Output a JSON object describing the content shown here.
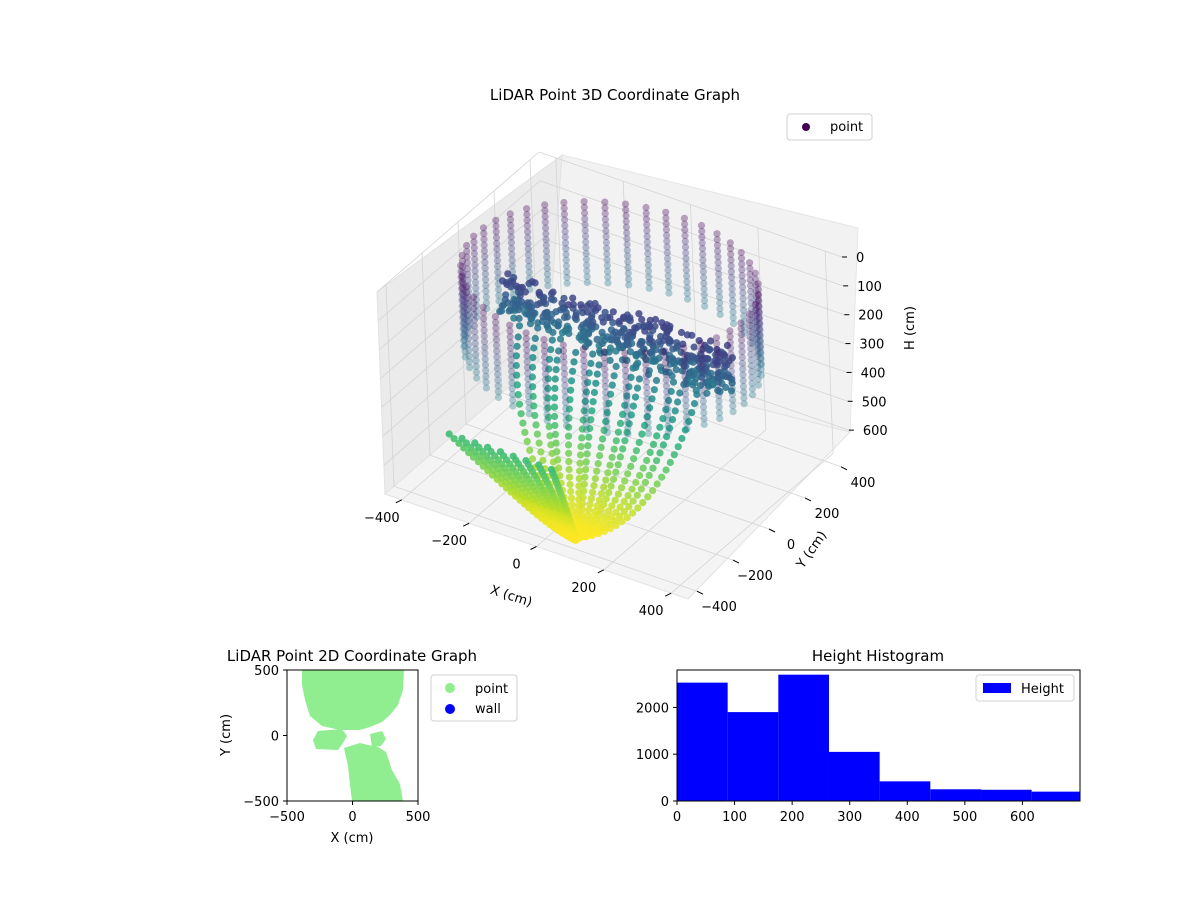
{
  "chart_data": [
    {
      "type": "scatter",
      "projection": "3d",
      "title": "LiDAR Point 3D Coordinate Graph",
      "xlabel": "X (cm)",
      "ylabel": "Y (cm)",
      "zlabel": "H (cm)",
      "xticks": [
        "−400",
        "−200",
        "0",
        "200",
        "400"
      ],
      "yticks": [
        "−400",
        "−200",
        "0",
        "200",
        "400"
      ],
      "zticks": [
        "0",
        "100",
        "200",
        "300",
        "400",
        "500",
        "600"
      ],
      "xlim": [
        -450,
        450
      ],
      "ylim": [
        -450,
        450
      ],
      "zlim": [
        0,
        700
      ],
      "z_inverted": true,
      "colormap": "viridis",
      "legend": {
        "position": "top-right",
        "entries": [
          {
            "name": "point",
            "color": "#440154"
          }
        ]
      },
      "features": {
        "ring": {
          "radius": 390,
          "z_top": 0,
          "z_bottom": 300
        },
        "shelf": {
          "x_range": [
            -330,
            350
          ],
          "y_range": [
            -20,
            60
          ],
          "z_range": [
            140,
            300
          ]
        },
        "funnel_bottom": {
          "x": 70,
          "y": -340,
          "z": 700
        }
      }
    },
    {
      "type": "scatter",
      "title": "LiDAR Point 2D Coordinate Graph",
      "xlabel": "X (cm)",
      "ylabel": "Y (cm)",
      "xlim": [
        -500,
        500
      ],
      "ylim": [
        -500,
        500
      ],
      "xticks": [
        "−500",
        "0",
        "500"
      ],
      "yticks": [
        "−500",
        "0",
        "500"
      ],
      "legend": {
        "position": "outside-right",
        "entries": [
          {
            "name": "point",
            "color": "#90ee90"
          },
          {
            "name": "wall",
            "color": "#0000ff"
          }
        ]
      }
    },
    {
      "type": "bar",
      "title": "Height Histogram",
      "xlabel": "",
      "ylabel": "",
      "bin_edges": [
        0,
        88,
        176,
        264,
        352,
        440,
        528,
        616,
        700
      ],
      "values": [
        2530,
        1900,
        2700,
        1050,
        420,
        250,
        240,
        200
      ],
      "xticks": [
        "0",
        "100",
        "200",
        "300",
        "400",
        "500",
        "600"
      ],
      "yticks": [
        "0",
        "1000",
        "2000"
      ],
      "xlim": [
        0,
        700
      ],
      "ylim": [
        0,
        2800
      ],
      "color": "#0000ff",
      "legend": {
        "position": "top-right",
        "entries": [
          {
            "name": "Height",
            "color": "#0000ff"
          }
        ]
      }
    }
  ]
}
